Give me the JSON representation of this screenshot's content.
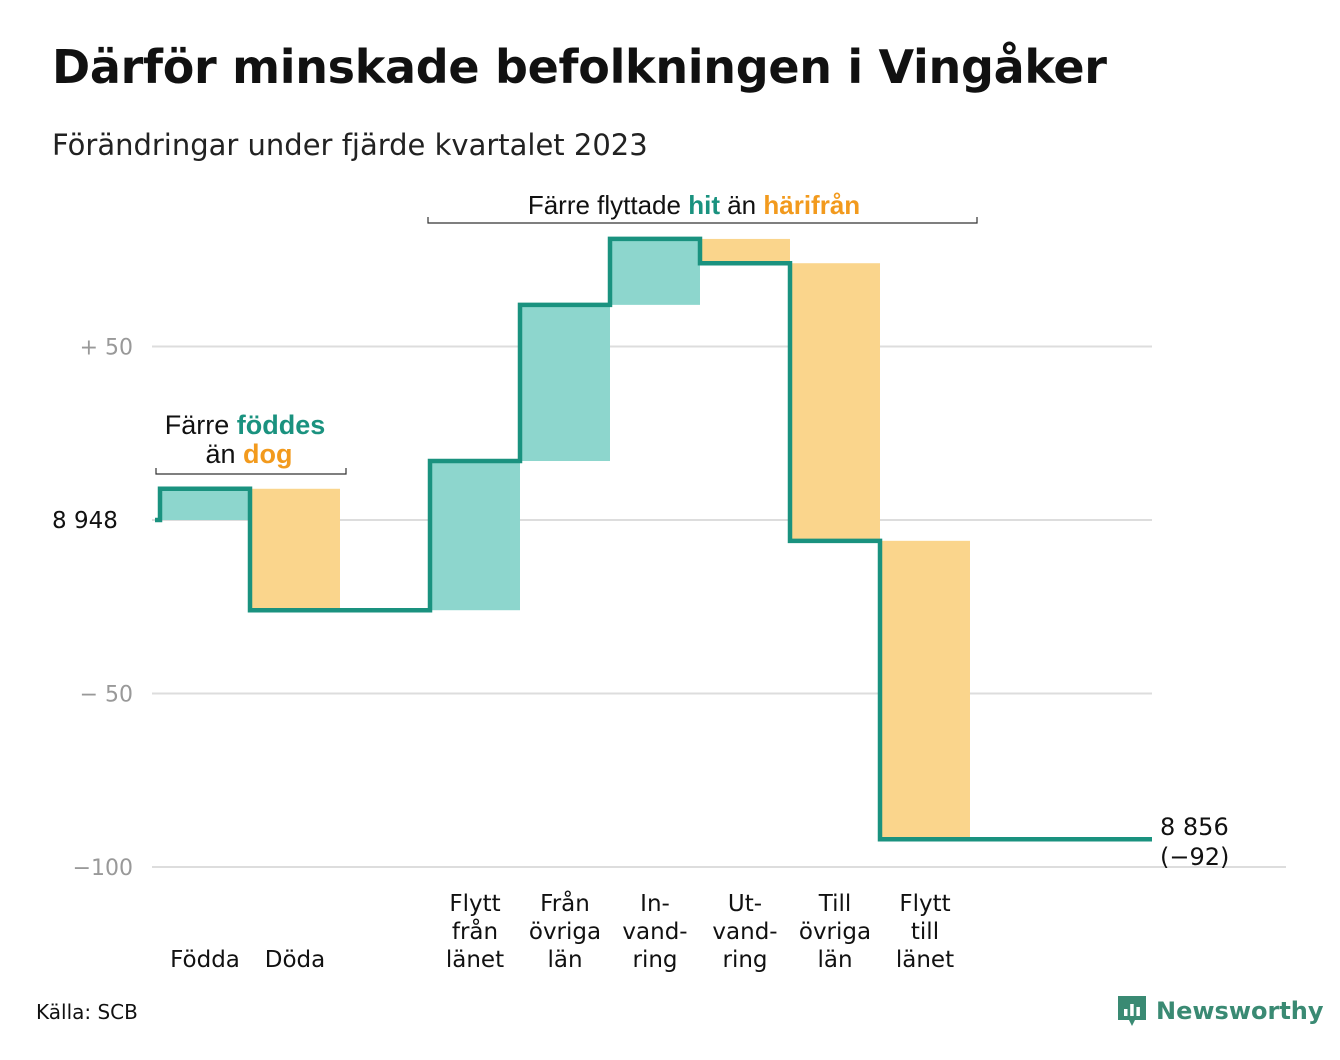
{
  "title": "Därför minskade befolkningen i Vingåker",
  "subtitle": "Förändringar under fjärde kvartalet 2023",
  "source": "Källa: SCB",
  "logo_text": "Newsworthy",
  "colors": {
    "line": "#1a927f",
    "increase": "#8dd6cd",
    "decrease": "#fad58c",
    "highlight_green": "#1a927f",
    "highlight_orange": "#f29a1d",
    "grid": "#dddddd",
    "axis_text": "#999999"
  },
  "annotations": {
    "birth_death": {
      "line1_a": "Färre",
      "line1_b": "föddes",
      "line2_a": "än",
      "line2_b": "dog"
    },
    "migration": {
      "a": "Färre flyttade",
      "b": "hit",
      "c": "än",
      "d": "härifrån"
    }
  },
  "chart_data": {
    "type": "waterfall",
    "start_label": "8  948",
    "start_value": 8948,
    "end_label_1": "8 856",
    "end_label_2": "(−92)",
    "end_value": 8856,
    "total_change": -92,
    "yticks": [
      {
        "value": 50,
        "label": "+  50"
      },
      {
        "value": 0,
        "label": ""
      },
      {
        "value": -50,
        "label": "−  50"
      },
      {
        "value": -100,
        "label": "−100"
      }
    ],
    "ylim": [
      -100,
      65
    ],
    "categories": [
      {
        "name": "Födda",
        "lines": [
          "Födda"
        ],
        "change": 9,
        "kind": "increase"
      },
      {
        "name": "Döda",
        "lines": [
          "Döda"
        ],
        "change": -35,
        "kind": "decrease"
      },
      {
        "name": "gap",
        "lines": [],
        "change": 0,
        "kind": "gap"
      },
      {
        "name": "Flytt från länet",
        "lines": [
          "Flytt",
          "från",
          "länet"
        ],
        "change": 43,
        "kind": "increase"
      },
      {
        "name": "Från övriga län",
        "lines": [
          "Från",
          "övriga",
          "län"
        ],
        "change": 45,
        "kind": "increase"
      },
      {
        "name": "Invandring",
        "lines": [
          "In-",
          "vand-",
          "ring"
        ],
        "change": 19,
        "kind": "increase"
      },
      {
        "name": "Utvandring",
        "lines": [
          "Ut-",
          "vand-",
          "ring"
        ],
        "change": -7,
        "kind": "decrease"
      },
      {
        "name": "Till övriga län",
        "lines": [
          "Till",
          "övriga",
          "län"
        ],
        "change": -80,
        "kind": "decrease"
      },
      {
        "name": "Flytt till länet",
        "lines": [
          "Flytt",
          "till",
          "länet"
        ],
        "change": -86,
        "kind": "decrease"
      }
    ]
  }
}
